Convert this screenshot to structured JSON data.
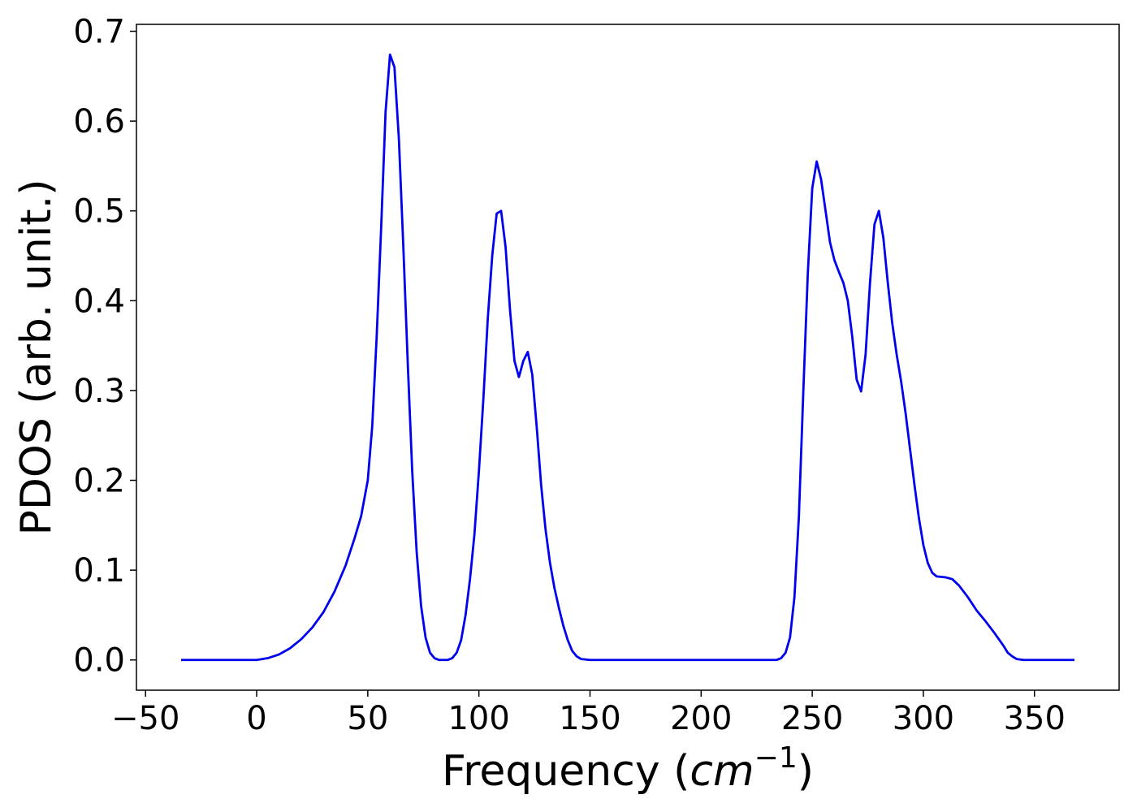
{
  "chart_data": {
    "type": "line",
    "ylabel": "PDOS (arb. unit.)",
    "xlabel": {
      "text": "Frequency (",
      "unit": "cm",
      "exponent": "−1",
      "close": ")"
    },
    "x": [
      -34,
      0,
      5,
      10,
      15,
      20,
      25,
      30,
      35,
      40,
      44,
      47,
      50,
      52,
      54,
      56,
      58,
      60,
      62,
      64,
      66,
      68,
      70,
      72,
      74,
      76,
      78,
      80,
      82,
      86,
      88,
      90,
      92,
      94,
      96,
      98,
      100,
      102,
      104,
      106,
      108,
      110,
      112,
      114,
      116,
      118,
      120,
      122,
      124,
      126,
      128,
      130,
      132,
      134,
      136,
      138,
      140,
      142,
      144,
      146,
      150,
      234,
      236,
      238,
      240,
      242,
      244,
      246,
      248,
      250,
      252,
      254,
      256,
      258,
      260,
      262,
      264,
      266,
      268,
      270,
      272,
      274,
      276,
      278,
      280,
      282,
      284,
      286,
      288,
      290,
      292,
      294,
      296,
      298,
      300,
      302,
      304,
      306,
      310,
      313,
      316,
      320,
      324,
      328,
      332,
      336,
      338,
      340,
      342,
      345,
      368
    ],
    "series": [
      {
        "color": "#0000ee",
        "values": [
          0,
          0,
          0.002,
          0.006,
          0.013,
          0.023,
          0.036,
          0.053,
          0.076,
          0.105,
          0.135,
          0.16,
          0.2,
          0.26,
          0.36,
          0.48,
          0.61,
          0.674,
          0.66,
          0.58,
          0.46,
          0.33,
          0.21,
          0.12,
          0.06,
          0.025,
          0.008,
          0.002,
          0,
          0,
          0.002,
          0.008,
          0.022,
          0.05,
          0.09,
          0.14,
          0.21,
          0.29,
          0.38,
          0.45,
          0.497,
          0.5,
          0.46,
          0.39,
          0.333,
          0.315,
          0.333,
          0.343,
          0.318,
          0.26,
          0.195,
          0.145,
          0.108,
          0.08,
          0.058,
          0.038,
          0.022,
          0.01,
          0.004,
          0.001,
          0,
          0,
          0.002,
          0.008,
          0.025,
          0.07,
          0.16,
          0.3,
          0.43,
          0.525,
          0.555,
          0.535,
          0.5,
          0.465,
          0.445,
          0.432,
          0.42,
          0.4,
          0.36,
          0.312,
          0.299,
          0.34,
          0.42,
          0.485,
          0.5,
          0.47,
          0.42,
          0.375,
          0.34,
          0.31,
          0.275,
          0.235,
          0.195,
          0.158,
          0.128,
          0.108,
          0.097,
          0.093,
          0.092,
          0.09,
          0.083,
          0.07,
          0.055,
          0.043,
          0.03,
          0.016,
          0.008,
          0.004,
          0.001,
          0,
          0
        ]
      }
    ],
    "xlim": [
      -54.1,
      388.1
    ],
    "xticks": [
      {
        "value": -50,
        "label": "−50"
      },
      0,
      50,
      100,
      150,
      200,
      250,
      300,
      350
    ],
    "ylim": [
      -0.0337,
      0.7077
    ],
    "yticks": [
      {
        "value": 0,
        "label": "0.0"
      },
      0.1,
      0.2,
      0.3,
      0.4,
      0.5,
      0.6,
      0.7
    ]
  }
}
